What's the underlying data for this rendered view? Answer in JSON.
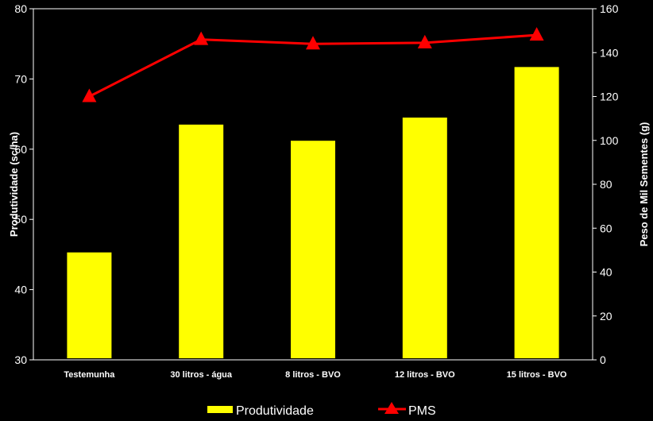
{
  "chart_data": {
    "type": "bar",
    "categories": [
      "Testemunha",
      "30 litros - água",
      "8 litros - BVO",
      "12 litros - BVO",
      "15 litros - BVO"
    ],
    "ylabel": "Produtividade (sc/ha)",
    "y2label": "Peso de Mil Sementes (g)",
    "ylim": [
      30,
      80
    ],
    "y2lim": [
      0,
      160
    ],
    "yticks": [
      "30",
      "40",
      "50",
      "60",
      "70",
      "80"
    ],
    "y2ticks": [
      "0",
      "20",
      "40",
      "60",
      "80",
      "100",
      "120",
      "140",
      "160"
    ],
    "grid": false,
    "legend_position": "bottom",
    "series": [
      {
        "name": "Produtividade",
        "type": "bar",
        "axis": "left",
        "color": "#FFFF00",
        "values": [
          45.3,
          63.5,
          61.2,
          64.5,
          71.7
        ]
      },
      {
        "name": "PMS",
        "type": "line",
        "axis": "right",
        "color": "#FF0000",
        "marker": "triangle",
        "values": [
          120,
          146,
          144,
          144.5,
          148
        ]
      }
    ]
  }
}
